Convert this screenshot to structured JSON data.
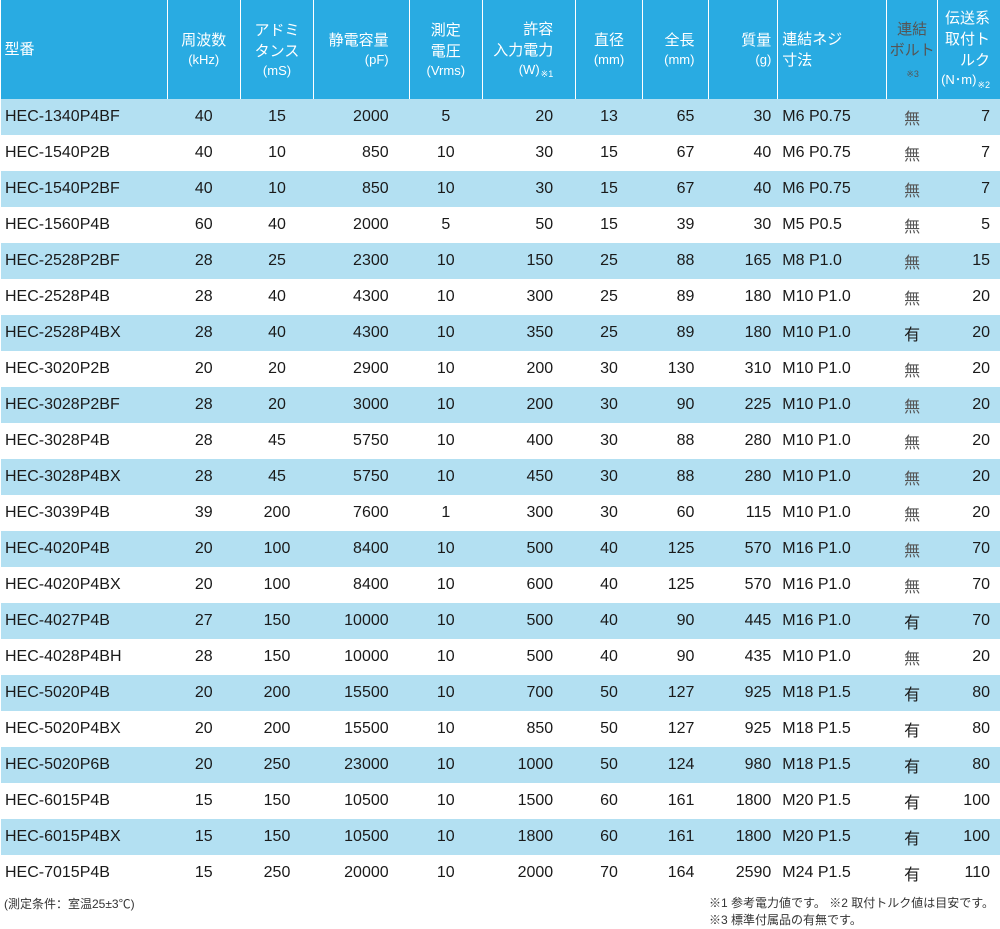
{
  "table": {
    "type": "table",
    "colors": {
      "header_bg": "#29abe2",
      "header_text": "#ffffff",
      "stripe_a": "#b3e0f2",
      "stripe_b": "#ffffff",
      "body_text": "#1a1a1a",
      "bolt_absent_color": "#777777"
    },
    "columns": [
      {
        "key": "model",
        "label": "型番",
        "unit": "",
        "class": "col-model"
      },
      {
        "key": "freq",
        "label": "周波数",
        "unit": "(kHz)",
        "class": "col-freq"
      },
      {
        "key": "adm",
        "label": "アドミ\nタンス",
        "unit": "(mS)",
        "class": "col-adm"
      },
      {
        "key": "cap",
        "label": "静電容量",
        "unit": "(pF)",
        "class": "col-cap"
      },
      {
        "key": "volt",
        "label": "測定\n電圧",
        "unit": "(Vrms)",
        "class": "col-volt"
      },
      {
        "key": "pow",
        "label": "許容\n入力電力",
        "unit": "(W)",
        "note": "※1",
        "class": "col-pow"
      },
      {
        "key": "dia",
        "label": "直径",
        "unit": "(mm)",
        "class": "col-dia"
      },
      {
        "key": "len",
        "label": "全長",
        "unit": "(mm)",
        "class": "col-len"
      },
      {
        "key": "mass",
        "label": "質量",
        "unit": "(g)",
        "class": "col-mass"
      },
      {
        "key": "screw",
        "label": "連結ネジ\n寸法",
        "unit": "",
        "class": "col-screw"
      },
      {
        "key": "bolt",
        "label": "連結\nボルト",
        "unit": "",
        "note": "※3",
        "class": "col-bolt"
      },
      {
        "key": "torque",
        "label": "伝送系\n取付トルク",
        "unit": "(N･m)",
        "note": "※2",
        "class": "col-torque"
      }
    ],
    "rows": [
      {
        "model": "HEC-1340P4BF",
        "freq": "40",
        "adm": "15",
        "cap": "2000",
        "volt": "5",
        "pow": "20",
        "dia": "13",
        "len": "65",
        "mass": "30",
        "screw": "M6 P0.75",
        "bolt": "無",
        "torque": "7"
      },
      {
        "model": "HEC-1540P2B",
        "freq": "40",
        "adm": "10",
        "cap": "850",
        "volt": "10",
        "pow": "30",
        "dia": "15",
        "len": "67",
        "mass": "40",
        "screw": "M6 P0.75",
        "bolt": "無",
        "torque": "7"
      },
      {
        "model": "HEC-1540P2BF",
        "freq": "40",
        "adm": "10",
        "cap": "850",
        "volt": "10",
        "pow": "30",
        "dia": "15",
        "len": "67",
        "mass": "40",
        "screw": "M6 P0.75",
        "bolt": "無",
        "torque": "7"
      },
      {
        "model": "HEC-1560P4B",
        "freq": "60",
        "adm": "40",
        "cap": "2000",
        "volt": "5",
        "pow": "50",
        "dia": "15",
        "len": "39",
        "mass": "30",
        "screw": "M5 P0.5",
        "bolt": "無",
        "torque": "5"
      },
      {
        "model": "HEC-2528P2BF",
        "freq": "28",
        "adm": "25",
        "cap": "2300",
        "volt": "10",
        "pow": "150",
        "dia": "25",
        "len": "88",
        "mass": "165",
        "screw": "M8 P1.0",
        "bolt": "無",
        "torque": "15"
      },
      {
        "model": "HEC-2528P4B",
        "freq": "28",
        "adm": "40",
        "cap": "4300",
        "volt": "10",
        "pow": "300",
        "dia": "25",
        "len": "89",
        "mass": "180",
        "screw": "M10 P1.0",
        "bolt": "無",
        "torque": "20"
      },
      {
        "model": "HEC-2528P4BX",
        "freq": "28",
        "adm": "40",
        "cap": "4300",
        "volt": "10",
        "pow": "350",
        "dia": "25",
        "len": "89",
        "mass": "180",
        "screw": "M10 P1.0",
        "bolt": "有",
        "torque": "20"
      },
      {
        "model": "HEC-3020P2B",
        "freq": "20",
        "adm": "20",
        "cap": "2900",
        "volt": "10",
        "pow": "200",
        "dia": "30",
        "len": "130",
        "mass": "310",
        "screw": "M10 P1.0",
        "bolt": "無",
        "torque": "20"
      },
      {
        "model": "HEC-3028P2BF",
        "freq": "28",
        "adm": "20",
        "cap": "3000",
        "volt": "10",
        "pow": "200",
        "dia": "30",
        "len": "90",
        "mass": "225",
        "screw": "M10 P1.0",
        "bolt": "無",
        "torque": "20"
      },
      {
        "model": "HEC-3028P4B",
        "freq": "28",
        "adm": "45",
        "cap": "5750",
        "volt": "10",
        "pow": "400",
        "dia": "30",
        "len": "88",
        "mass": "280",
        "screw": "M10 P1.0",
        "bolt": "無",
        "torque": "20"
      },
      {
        "model": "HEC-3028P4BX",
        "freq": "28",
        "adm": "45",
        "cap": "5750",
        "volt": "10",
        "pow": "450",
        "dia": "30",
        "len": "88",
        "mass": "280",
        "screw": "M10 P1.0",
        "bolt": "無",
        "torque": "20"
      },
      {
        "model": "HEC-3039P4B",
        "freq": "39",
        "adm": "200",
        "cap": "7600",
        "volt": "1",
        "pow": "300",
        "dia": "30",
        "len": "60",
        "mass": "115",
        "screw": "M10 P1.0",
        "bolt": "無",
        "torque": "20"
      },
      {
        "model": "HEC-4020P4B",
        "freq": "20",
        "adm": "100",
        "cap": "8400",
        "volt": "10",
        "pow": "500",
        "dia": "40",
        "len": "125",
        "mass": "570",
        "screw": "M16 P1.0",
        "bolt": "無",
        "torque": "70"
      },
      {
        "model": "HEC-4020P4BX",
        "freq": "20",
        "adm": "100",
        "cap": "8400",
        "volt": "10",
        "pow": "600",
        "dia": "40",
        "len": "125",
        "mass": "570",
        "screw": "M16 P1.0",
        "bolt": "無",
        "torque": "70"
      },
      {
        "model": "HEC-4027P4B",
        "freq": "27",
        "adm": "150",
        "cap": "10000",
        "volt": "10",
        "pow": "500",
        "dia": "40",
        "len": "90",
        "mass": "445",
        "screw": "M16 P1.0",
        "bolt": "有",
        "torque": "70"
      },
      {
        "model": "HEC-4028P4BH",
        "freq": "28",
        "adm": "150",
        "cap": "10000",
        "volt": "10",
        "pow": "500",
        "dia": "40",
        "len": "90",
        "mass": "435",
        "screw": "M10 P1.0",
        "bolt": "無",
        "torque": "20"
      },
      {
        "model": "HEC-5020P4B",
        "freq": "20",
        "adm": "200",
        "cap": "15500",
        "volt": "10",
        "pow": "700",
        "dia": "50",
        "len": "127",
        "mass": "925",
        "screw": "M18 P1.5",
        "bolt": "有",
        "torque": "80"
      },
      {
        "model": "HEC-5020P4BX",
        "freq": "20",
        "adm": "200",
        "cap": "15500",
        "volt": "10",
        "pow": "850",
        "dia": "50",
        "len": "127",
        "mass": "925",
        "screw": "M18 P1.5",
        "bolt": "有",
        "torque": "80"
      },
      {
        "model": "HEC-5020P6B",
        "freq": "20",
        "adm": "250",
        "cap": "23000",
        "volt": "10",
        "pow": "1000",
        "dia": "50",
        "len": "124",
        "mass": "980",
        "screw": "M18 P1.5",
        "bolt": "有",
        "torque": "80"
      },
      {
        "model": "HEC-6015P4B",
        "freq": "15",
        "adm": "150",
        "cap": "10500",
        "volt": "10",
        "pow": "1500",
        "dia": "60",
        "len": "161",
        "mass": "1800",
        "screw": "M20 P1.5",
        "bolt": "有",
        "torque": "100"
      },
      {
        "model": "HEC-6015P4BX",
        "freq": "15",
        "adm": "150",
        "cap": "10500",
        "volt": "10",
        "pow": "1800",
        "dia": "60",
        "len": "161",
        "mass": "1800",
        "screw": "M20 P1.5",
        "bolt": "有",
        "torque": "100"
      },
      {
        "model": "HEC-7015P4B",
        "freq": "15",
        "adm": "250",
        "cap": "20000",
        "volt": "10",
        "pow": "2000",
        "dia": "70",
        "len": "164",
        "mass": "2590",
        "screw": "M24 P1.5",
        "bolt": "有",
        "torque": "110"
      }
    ]
  },
  "footnotes": {
    "left": "(測定条件：室温25±3℃)",
    "right1": "※1 参考電力値です。  ※2 取付トルク値は目安です。",
    "right2": "※3 標準付属品の有無です。"
  }
}
